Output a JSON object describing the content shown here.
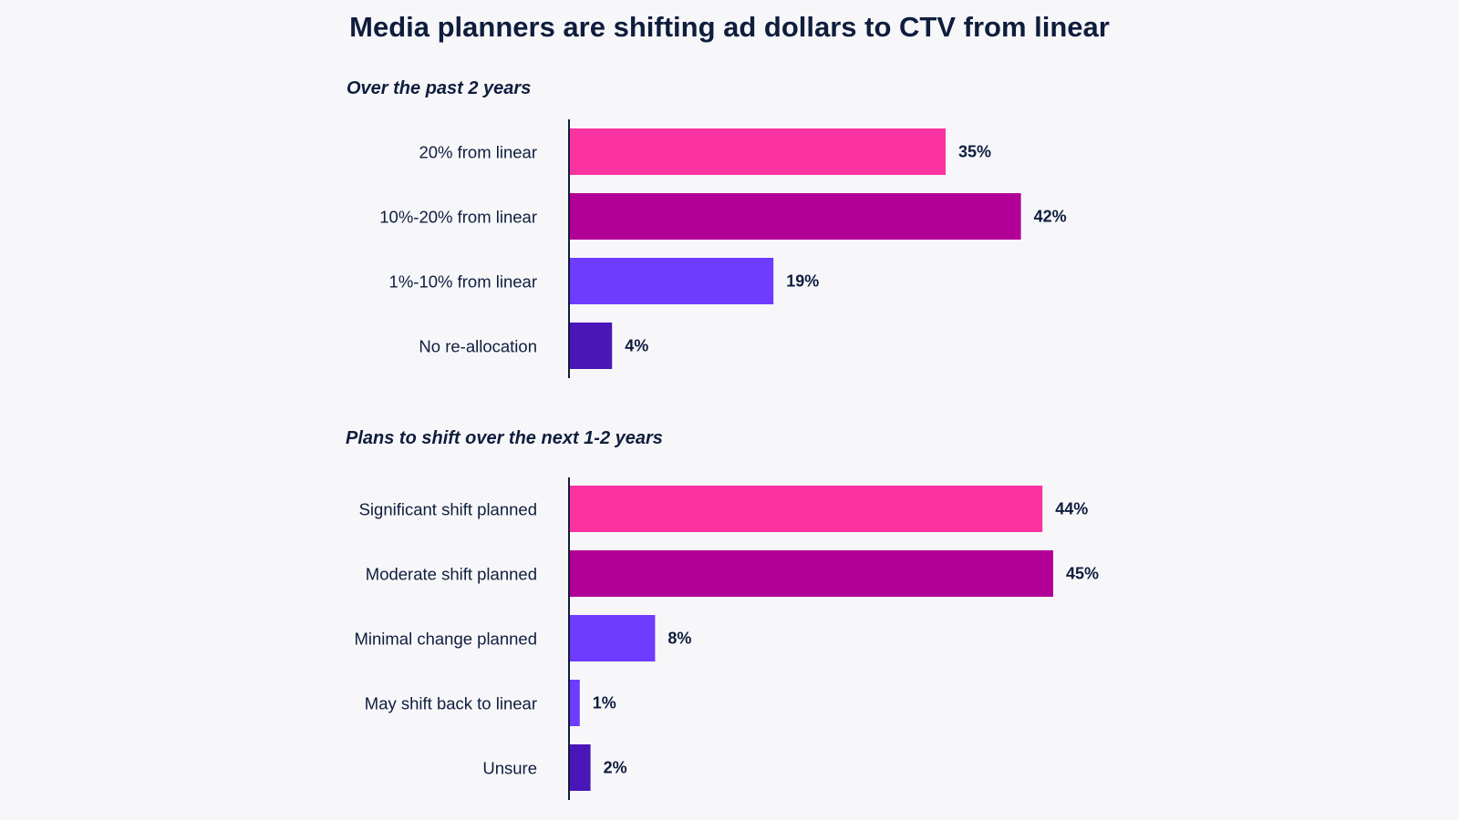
{
  "title": "Media planners are shifting ad dollars to CTV from linear",
  "chart_data": [
    {
      "type": "bar",
      "orientation": "horizontal",
      "title": "Over the past 2 years",
      "categories": [
        "20% from linear",
        "10%-20% from linear",
        "1%-10% from linear",
        "No re-allocation"
      ],
      "values": [
        35,
        42,
        19,
        4
      ],
      "value_labels": [
        "35%",
        "42%",
        "19%",
        "4%"
      ],
      "colors": [
        "#fb33a0",
        "#b20096",
        "#6e3cff",
        "#4a16b8"
      ],
      "xlim": [
        0,
        50
      ],
      "grid": false
    },
    {
      "type": "bar",
      "orientation": "horizontal",
      "title": "Plans to shift over the next 1-2 years",
      "categories": [
        "Significant shift planned",
        "Moderate shift planned",
        "Minimal change planned",
        "May shift back to linear",
        "Unsure"
      ],
      "values": [
        44,
        45,
        8,
        1,
        2
      ],
      "value_labels": [
        "44%",
        "45%",
        "8%",
        "1%",
        "2%"
      ],
      "colors": [
        "#fb33a0",
        "#b20096",
        "#6e3cff",
        "#6e3cff",
        "#4a16b8"
      ],
      "xlim": [
        0,
        50
      ],
      "grid": false
    }
  ]
}
